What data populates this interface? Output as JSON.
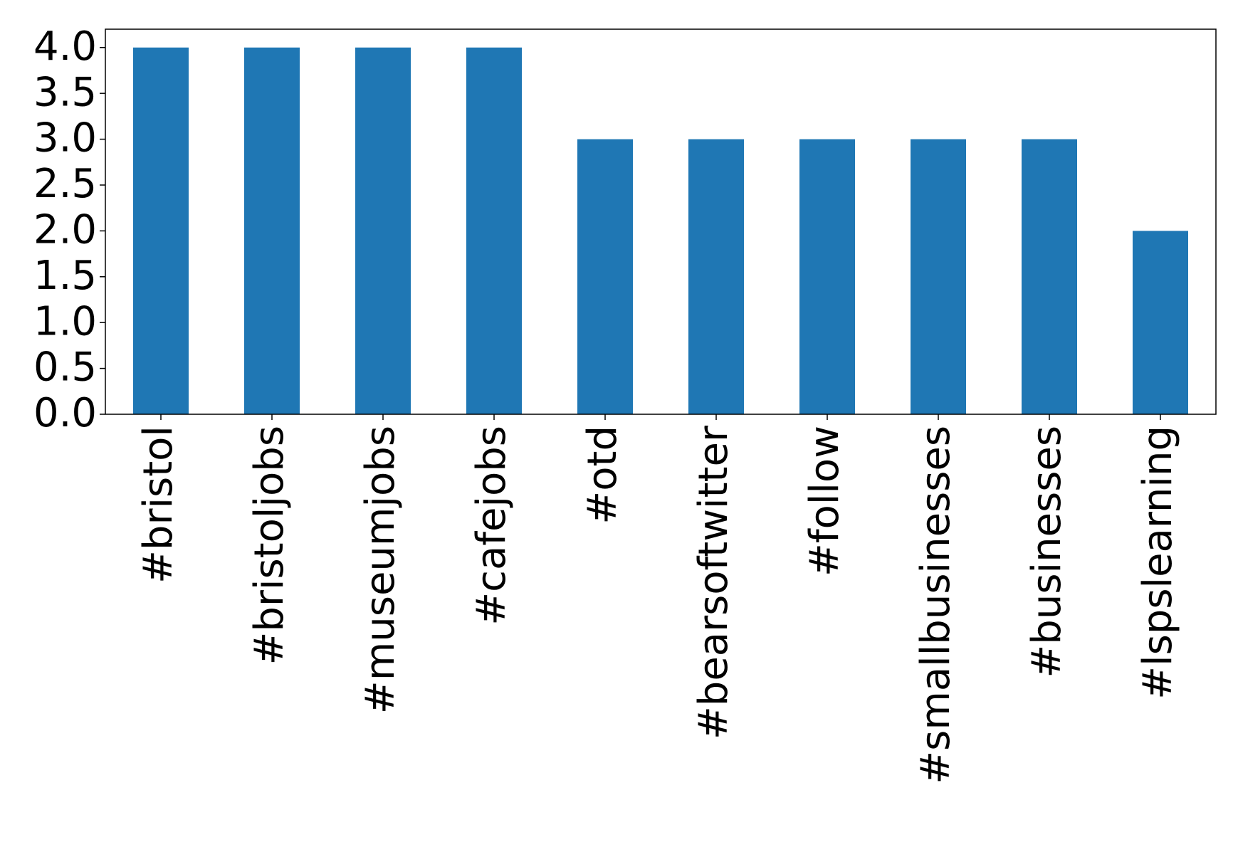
{
  "chart_data": {
    "type": "bar",
    "categories": [
      "#bristol",
      "#bristoljobs",
      "#museumjobs",
      "#cafejobs",
      "#otd",
      "#bearsoftwitter",
      "#follow",
      "#smallbusinesses",
      "#businesses",
      "#lspslearning"
    ],
    "values": [
      4,
      4,
      4,
      4,
      3,
      3,
      3,
      3,
      3,
      2
    ],
    "color": "#1f77b4",
    "ylim": [
      0,
      4.2
    ],
    "yticks": [
      {
        "value": 0,
        "label": "0.0"
      },
      0.5,
      {
        "value": 1,
        "label": "1.0"
      },
      1.5,
      {
        "value": 2,
        "label": "2.0"
      },
      2.5,
      {
        "value": 3,
        "label": "3.0"
      },
      3.5,
      {
        "value": 4,
        "label": "4.0"
      }
    ]
  }
}
